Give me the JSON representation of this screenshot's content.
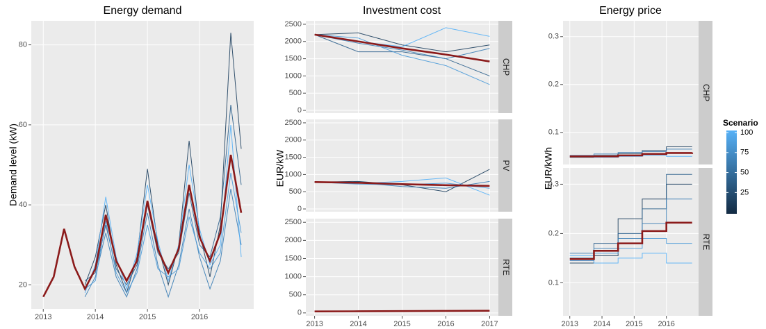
{
  "chart_data": [
    {
      "type": "line",
      "title": "Energy demand",
      "ylabel": "Demand level (kW)",
      "x": [
        2013,
        2013.2,
        2013.4,
        2013.6,
        2013.8,
        2014,
        2014.2,
        2014.4,
        2014.6,
        2014.8,
        2015,
        2015.2,
        2015.4,
        2015.6,
        2015.8,
        2016,
        2016.2,
        2016.4,
        2016.6,
        2016.8
      ],
      "xlim": [
        2012.77,
        2017.04
      ],
      "xticks": [
        2013,
        2014,
        2015,
        2016
      ],
      "ylim": [
        14,
        86
      ],
      "yticks": [
        20,
        40,
        60,
        80
      ],
      "panels": [
        {
          "series": [
            {
              "color": "#1d3f5e",
              "values": [
                null,
                null,
                null,
                null,
                20,
                27,
                40,
                25,
                18,
                27,
                49,
                30,
                20,
                30,
                56,
                33,
                22,
                35,
                83,
                54
              ]
            },
            {
              "color": "#2b5f8c",
              "values": [
                null,
                null,
                null,
                null,
                21,
                23,
                35,
                24,
                20,
                25,
                40,
                28,
                24,
                28,
                43,
                30,
                27,
                37,
                65,
                45
              ]
            },
            {
              "color": "#3a7db5",
              "values": [
                null,
                null,
                null,
                null,
                17,
                22,
                33,
                22,
                17,
                24,
                38,
                25,
                17,
                25,
                39,
                27,
                19,
                26,
                44,
                30
              ]
            },
            {
              "color": "#56b1f7",
              "values": [
                null,
                null,
                null,
                null,
                18,
                25,
                42,
                27,
                19,
                28,
                45,
                31,
                21,
                30,
                50,
                34,
                25,
                30,
                60,
                27
              ]
            },
            {
              "color": "#4a9ad8",
              "values": [
                null,
                null,
                null,
                null,
                19,
                21,
                36,
                23,
                18,
                23,
                35,
                24,
                22,
                24,
                37,
                28,
                24,
                28,
                48,
                33
              ]
            },
            {
              "color": "#8b1a1a",
              "values": [
                17,
                22,
                34,
                24.5,
                19,
                24,
                37.5,
                26,
                21,
                26,
                41,
                29,
                23,
                29,
                45,
                32,
                26,
                33,
                52.5,
                38
              ]
            }
          ]
        }
      ]
    },
    {
      "type": "line",
      "title": "Investment cost",
      "ylabel": "EUR/kW",
      "x": [
        2013,
        2014,
        2015,
        2016,
        2017
      ],
      "xlim": [
        2012.8,
        2017.2
      ],
      "xticks": [
        2013,
        2014,
        2015,
        2016,
        2017
      ],
      "ylim": [
        -80,
        2600
      ],
      "yticks": [
        0,
        500,
        1000,
        1500,
        2000,
        2500
      ],
      "panels": [
        {
          "strip": "CHP",
          "series": [
            {
              "color": "#1d3f5e",
              "values": [
                2200,
                2250,
                1900,
                1700,
                1900
              ]
            },
            {
              "color": "#2b5f8c",
              "values": [
                2200,
                1700,
                1700,
                1500,
                1000
              ]
            },
            {
              "color": "#56b1f7",
              "values": [
                2200,
                2000,
                1850,
                2400,
                2150
              ]
            },
            {
              "color": "#4a9ad8",
              "values": [
                2200,
                2100,
                1600,
                1300,
                750
              ]
            },
            {
              "color": "#3a7db5",
              "values": [
                2200,
                1950,
                1750,
                1500,
                1800
              ]
            },
            {
              "color": "#8b1a1a",
              "values": [
                2200,
                2000,
                1800,
                1620,
                1420
              ]
            }
          ]
        },
        {
          "strip": "PV",
          "series": [
            {
              "color": "#1d3f5e",
              "values": [
                780,
                800,
                700,
                500,
                1150
              ]
            },
            {
              "color": "#56b1f7",
              "values": [
                780,
                740,
                800,
                900,
                400
              ]
            },
            {
              "color": "#3a7db5",
              "values": [
                780,
                760,
                650,
                600,
                800
              ]
            },
            {
              "color": "#4a9ad8",
              "values": [
                780,
                720,
                700,
                750,
                600
              ]
            },
            {
              "color": "#8b1a1a",
              "values": [
                780,
                760,
                720,
                690,
                670
              ]
            }
          ]
        },
        {
          "strip": "RTE",
          "series": [
            {
              "color": "#8b1a1a",
              "values": [
                40,
                45,
                50,
                55,
                60
              ]
            }
          ]
        }
      ]
    },
    {
      "type": "step",
      "title": "Energy price",
      "ylabel": "EUR/kWh",
      "x": [
        2013,
        2013.75,
        2014.5,
        2015.25,
        2016,
        2016.8
      ],
      "xlim": [
        2012.79,
        2017.0
      ],
      "xticks": [
        2013,
        2014,
        2015,
        2016
      ],
      "ylim": [
        0.033,
        0.333
      ],
      "yticks": [
        0.1,
        0.2,
        0.3
      ],
      "panels": [
        {
          "strip": "CHP",
          "series": [
            {
              "color": "#1d3f5e",
              "values": [
                0.048,
                0.052,
                0.056,
                0.062,
                0.07,
                0.07
              ]
            },
            {
              "color": "#56b1f7",
              "values": [
                0.05,
                0.048,
                0.05,
                0.052,
                0.05,
                0.05
              ]
            },
            {
              "color": "#3a7db5",
              "values": [
                0.052,
                0.055,
                0.058,
                0.06,
                0.065,
                0.065
              ]
            },
            {
              "color": "#8b1a1a",
              "values": [
                0.05,
                0.05,
                0.052,
                0.055,
                0.057,
                0.058
              ]
            }
          ]
        },
        {
          "strip": "RTE",
          "series": [
            {
              "color": "#1d3f5e",
              "values": [
                0.14,
                0.155,
                0.23,
                0.27,
                0.3,
                0.3
              ]
            },
            {
              "color": "#56b1f7",
              "values": [
                0.155,
                0.14,
                0.15,
                0.16,
                0.14,
                0.14
              ]
            },
            {
              "color": "#2b5f8c",
              "values": [
                0.15,
                0.18,
                0.2,
                0.25,
                0.32,
                0.32
              ]
            },
            {
              "color": "#4a9ad8",
              "values": [
                0.145,
                0.16,
                0.17,
                0.19,
                0.18,
                0.18
              ]
            },
            {
              "color": "#3a7db5",
              "values": [
                0.16,
                0.17,
                0.19,
                0.22,
                0.27,
                0.27
              ]
            },
            {
              "color": "#8b1a1a",
              "values": [
                0.148,
                0.165,
                0.18,
                0.205,
                0.222,
                0.222
              ]
            }
          ]
        }
      ],
      "legend": {
        "title": "Scenario",
        "lim": [
          1,
          100
        ],
        "ticks": [
          25,
          50,
          75,
          100
        ],
        "colors": [
          "#132b43",
          "#56b1f7"
        ]
      }
    }
  ]
}
